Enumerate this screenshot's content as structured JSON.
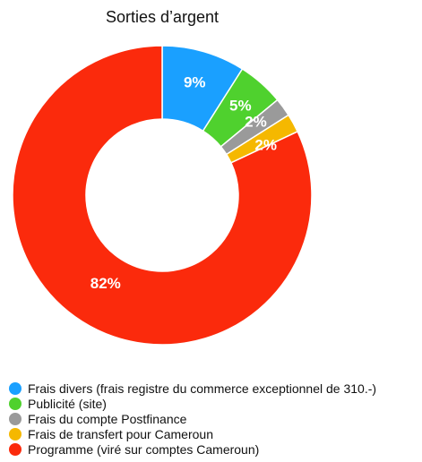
{
  "chart_data": {
    "type": "pie",
    "title": "Sorties d’argent",
    "donut": true,
    "legend_position": "bottom-left",
    "series": [
      {
        "name": "Frais divers (frais registre du commerce exceptionnel de 310.-)",
        "value": 9,
        "label": "9%",
        "color": "#1aa0ff"
      },
      {
        "name": "Publicité (site)",
        "value": 5,
        "label": "5%",
        "color": "#4fd12e"
      },
      {
        "name": "Frais du compte Postfinance",
        "value": 2,
        "label": "2%",
        "color": "#9a9a9a"
      },
      {
        "name": "Frais de transfert pour Cameroun",
        "value": 2,
        "label": "2%",
        "color": "#f5b800"
      },
      {
        "name": "Programme (viré sur comptes Cameroun)",
        "value": 82,
        "label": "82%",
        "color": "#fb2a0c"
      }
    ]
  }
}
